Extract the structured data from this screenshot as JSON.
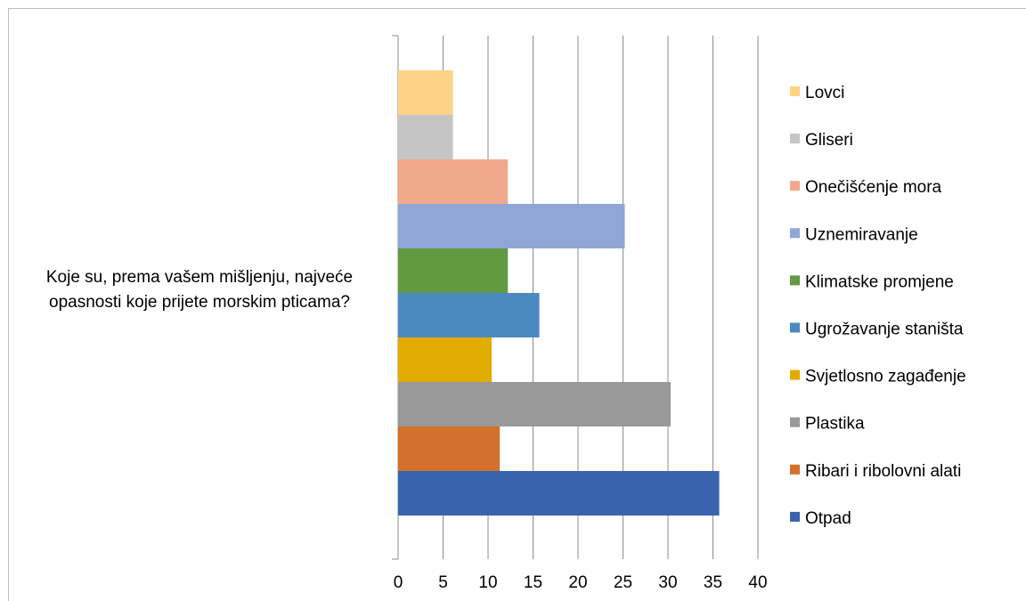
{
  "chart_data": {
    "type": "bar",
    "orientation": "horizontal",
    "categories": [
      "Koje su, prema vašem mišljenju, najveće opasnosti koje prijete morskim pticama?"
    ],
    "category_lines": [
      "Koje su, prema vašem mišljenju, najveće",
      "opasnosti koje prijete morskim pticama?"
    ],
    "series": [
      {
        "name": "Otpad",
        "values": [
          35.7
        ],
        "color": "#3a63ad"
      },
      {
        "name": "Ribari i ribolovni alati",
        "values": [
          11.3
        ],
        "color": "#d3702b"
      },
      {
        "name": "Plastika",
        "values": [
          30.3
        ],
        "color": "#999999"
      },
      {
        "name": "Svjetlosno zagađenje",
        "values": [
          10.4
        ],
        "color": "#e1ab00"
      },
      {
        "name": "Ugrožavanje staništa",
        "values": [
          15.7
        ],
        "color": "#4b8ac0"
      },
      {
        "name": "Klimatske promjene",
        "values": [
          12.2
        ],
        "color": "#629a42"
      },
      {
        "name": "Uznemiravanje",
        "values": [
          25.2
        ],
        "color": "#8fa6d7"
      },
      {
        "name": "Onečišćenje mora",
        "values": [
          12.2
        ],
        "color": "#f0a98b"
      },
      {
        "name": "Gliseri",
        "values": [
          6.1
        ],
        "color": "#c5c5c5"
      },
      {
        "name": "Lovci",
        "values": [
          6.1
        ],
        "color": "#fed386"
      }
    ],
    "xlim": [
      0,
      40
    ],
    "xticks": [
      "0",
      "5",
      "10",
      "15",
      "20",
      "25",
      "30",
      "35",
      "40"
    ],
    "grid": true,
    "legend_position": "right"
  }
}
